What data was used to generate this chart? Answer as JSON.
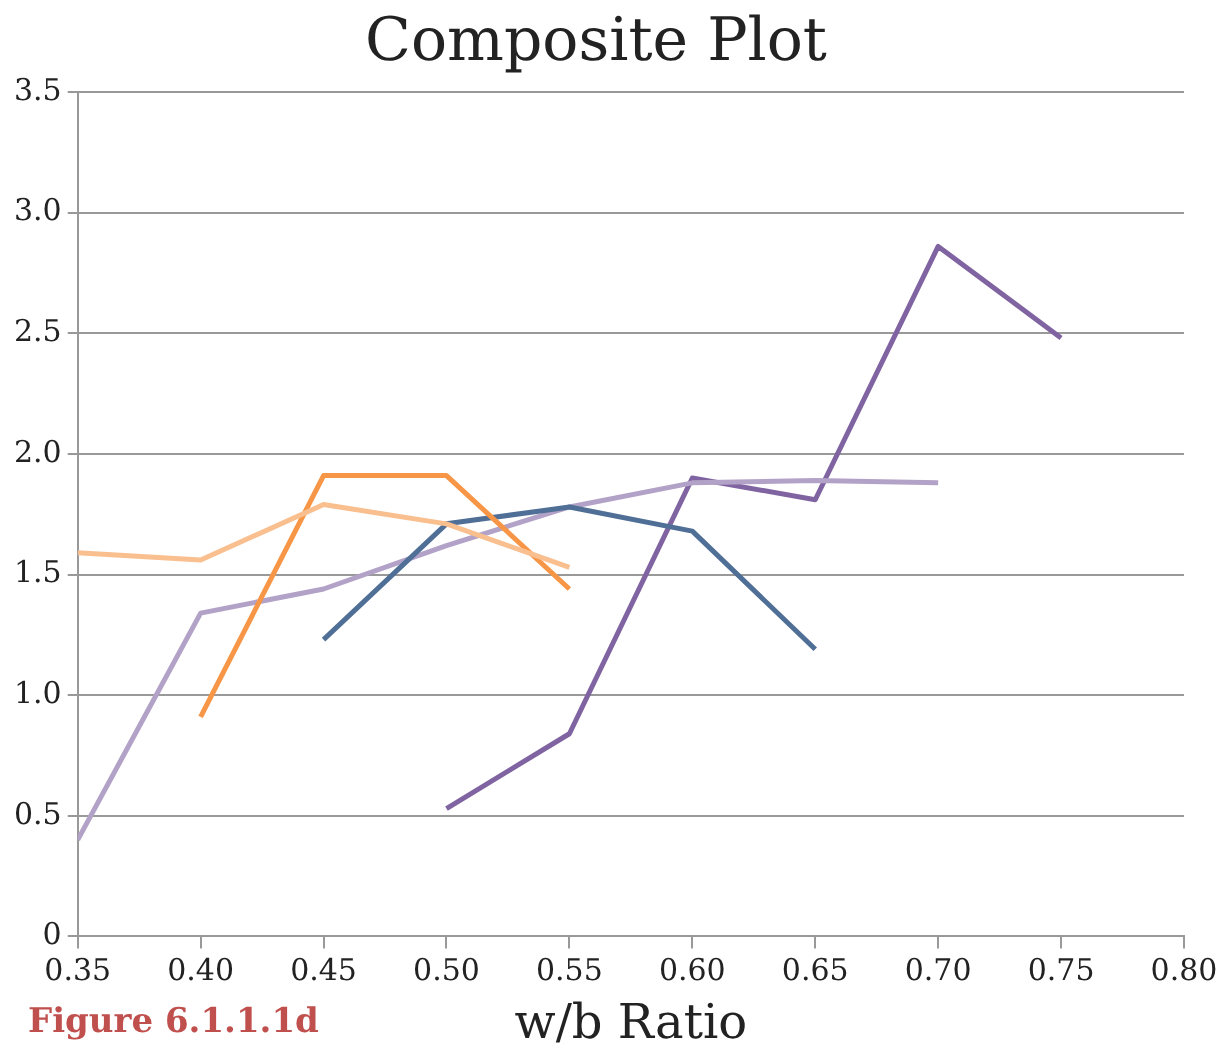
{
  "chart_data": {
    "type": "line",
    "title": "Composite Plot",
    "xlabel": "w/b Ratio",
    "annotations": [
      "Figure 6.1.1.1d"
    ],
    "xlim": [
      0.35,
      0.8
    ],
    "xticks": [
      {
        "value": 0.35,
        "label": "0.35"
      },
      {
        "value": 0.4,
        "label": "0.40"
      },
      {
        "value": 0.45,
        "label": "0.45"
      },
      {
        "value": 0.5,
        "label": "0.50"
      },
      {
        "value": 0.55,
        "label": "0.55"
      },
      {
        "value": 0.6,
        "label": "0.60"
      },
      {
        "value": 0.65,
        "label": "0.65"
      },
      {
        "value": 0.7,
        "label": "0.70"
      },
      {
        "value": 0.75,
        "label": "0.75"
      },
      {
        "value": 0.8,
        "label": "0.80"
      }
    ],
    "ylim": [
      0,
      3.5
    ],
    "yticks": [
      0,
      0.5,
      {
        "value": 1,
        "label": "1.0"
      },
      1.5,
      {
        "value": 2,
        "label": "2.0"
      },
      2.5,
      {
        "value": 3,
        "label": "3.0"
      },
      3.5
    ],
    "grid": "y",
    "legend": false,
    "marker": "none",
    "line_style": "solid",
    "series": [
      {
        "color": "#f9bf8f",
        "x": [
          0.35,
          0.4,
          0.45,
          0.5,
          0.55
        ],
        "values": [
          1.59,
          1.56,
          1.79,
          1.71,
          1.53
        ]
      },
      {
        "color": "#f79646",
        "x": [
          0.4,
          0.45,
          0.5,
          0.55
        ],
        "values": [
          0.91,
          1.91,
          1.91,
          1.44
        ]
      },
      {
        "color": "#4f6f96",
        "x": [
          0.45,
          0.5,
          0.55,
          0.6,
          0.65
        ],
        "values": [
          1.23,
          1.71,
          1.78,
          1.68,
          1.19
        ]
      },
      {
        "color": "#b3a2c7",
        "x": [
          0.35,
          0.4,
          0.45,
          0.5,
          0.55,
          0.6,
          0.65,
          0.7
        ],
        "values": [
          0.4,
          1.34,
          1.44,
          1.62,
          1.78,
          1.88,
          1.89,
          1.88
        ]
      },
      {
        "color": "#8064a2",
        "x": [
          0.5,
          0.55,
          0.6,
          0.65,
          0.7,
          0.75
        ],
        "values": [
          0.53,
          0.84,
          1.9,
          1.81,
          2.86,
          2.48
        ]
      }
    ]
  }
}
